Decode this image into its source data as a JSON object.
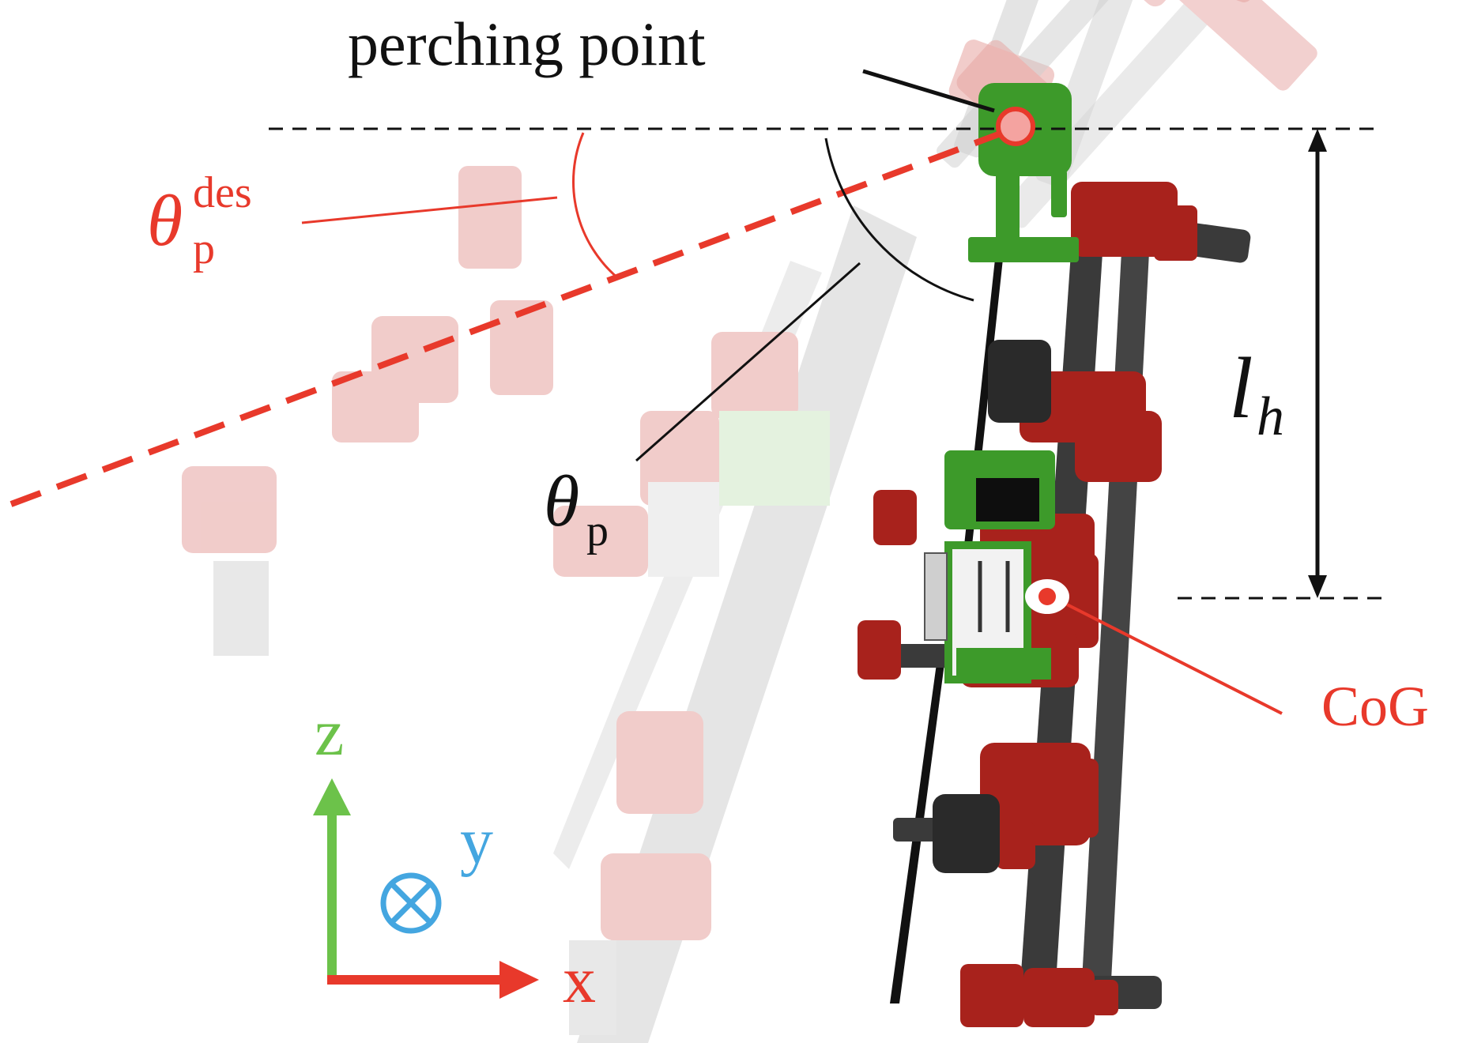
{
  "labels": {
    "perching_point": "perching point",
    "theta_p_des_base": "θ",
    "theta_p_des_sub": "p",
    "theta_p_des_sup": "des",
    "theta_p_base": "θ",
    "theta_p_sub": "p",
    "l_h_base": "l",
    "l_h_sub": "h",
    "cog": "CoG",
    "axis_z": "z",
    "axis_y": "y",
    "axis_x": "x"
  },
  "colors": {
    "red": "#e8392b",
    "green": "#6cc24a",
    "blue": "#44a6e0",
    "black": "#111111",
    "robot_red": "#a8221c",
    "robot_green": "#3d9a2a",
    "carbon": "#3a3a3a",
    "ghost_red": "#e6a3a0",
    "ghost_grey": "#c9c9c9",
    "ghost_green": "#bfe3b4"
  }
}
